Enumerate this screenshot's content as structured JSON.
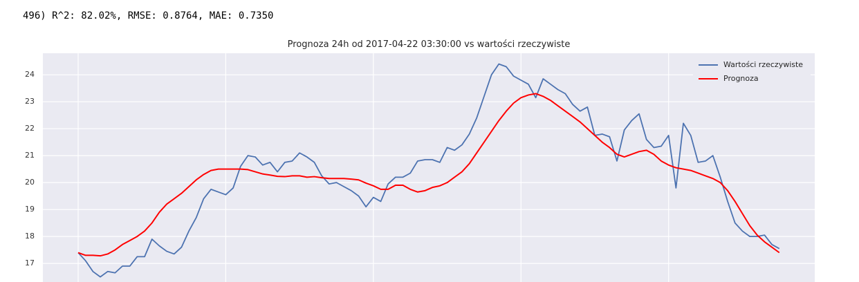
{
  "output_text": "496) R^2: 82.02%, RMSE: 0.8764, MAE: 0.7350",
  "chart_data": {
    "type": "line",
    "title": "Prognoza 24h od 2017-04-22 03:30:00 vs wartości rzeczywiste",
    "series": [
      {
        "name": "Wartości rzeczywiste",
        "color": "#4c72b0",
        "values": [
          17.4,
          17.1,
          16.7,
          16.5,
          16.7,
          16.65,
          16.9,
          16.9,
          17.25,
          17.25,
          17.9,
          17.65,
          17.45,
          17.35,
          17.6,
          18.2,
          18.7,
          19.4,
          19.75,
          19.65,
          19.55,
          19.8,
          20.6,
          21.0,
          20.95,
          20.65,
          20.75,
          20.4,
          20.75,
          20.8,
          21.1,
          20.95,
          20.75,
          20.25,
          19.95,
          20.0,
          19.85,
          19.7,
          19.5,
          19.1,
          19.45,
          19.3,
          19.95,
          20.2,
          20.2,
          20.35,
          20.8,
          20.85,
          20.85,
          20.75,
          21.3,
          21.2,
          21.4,
          21.8,
          22.4,
          23.2,
          24.0,
          24.4,
          24.3,
          23.95,
          23.8,
          23.65,
          23.15,
          23.85,
          23.65,
          23.45,
          23.3,
          22.9,
          22.65,
          22.8,
          21.75,
          21.8,
          21.7,
          20.8,
          21.95,
          22.3,
          22.55,
          21.6,
          21.3,
          21.35,
          21.75,
          19.8,
          22.2,
          21.75,
          20.75,
          20.8,
          21.0,
          20.2,
          19.3,
          18.5,
          18.2,
          18.0,
          18.0,
          18.05,
          17.7,
          17.55
        ]
      },
      {
        "name": "Prognoza",
        "color": "#ff0000",
        "values": [
          17.4,
          17.3,
          17.3,
          17.28,
          17.35,
          17.5,
          17.7,
          17.85,
          18.0,
          18.2,
          18.5,
          18.9,
          19.2,
          19.4,
          19.6,
          19.85,
          20.1,
          20.3,
          20.45,
          20.5,
          20.5,
          20.5,
          20.5,
          20.48,
          20.4,
          20.32,
          20.28,
          20.23,
          20.22,
          20.25,
          20.25,
          20.2,
          20.22,
          20.18,
          20.15,
          20.15,
          20.15,
          20.13,
          20.1,
          19.98,
          19.88,
          19.75,
          19.75,
          19.9,
          19.9,
          19.75,
          19.65,
          19.7,
          19.82,
          19.88,
          20.0,
          20.2,
          20.4,
          20.7,
          21.1,
          21.5,
          21.9,
          22.3,
          22.65,
          22.95,
          23.15,
          23.25,
          23.3,
          23.2,
          23.05,
          22.85,
          22.65,
          22.45,
          22.25,
          22.0,
          21.75,
          21.5,
          21.3,
          21.05,
          20.95,
          21.05,
          21.15,
          21.2,
          21.05,
          20.8,
          20.65,
          20.55,
          20.5,
          20.45,
          20.35,
          20.25,
          20.15,
          20.0,
          19.7,
          19.3,
          18.85,
          18.4,
          18.05,
          17.8,
          17.6,
          17.4
        ]
      }
    ],
    "xlim": [
      -4.78,
      99.8
    ],
    "xticks": [
      0,
      20,
      40,
      60,
      80
    ],
    "ylim": [
      16.31,
      24.8
    ],
    "yticks": [
      17,
      18,
      19,
      20,
      21,
      22,
      23,
      24
    ],
    "grid": true,
    "legend": "upper right"
  }
}
